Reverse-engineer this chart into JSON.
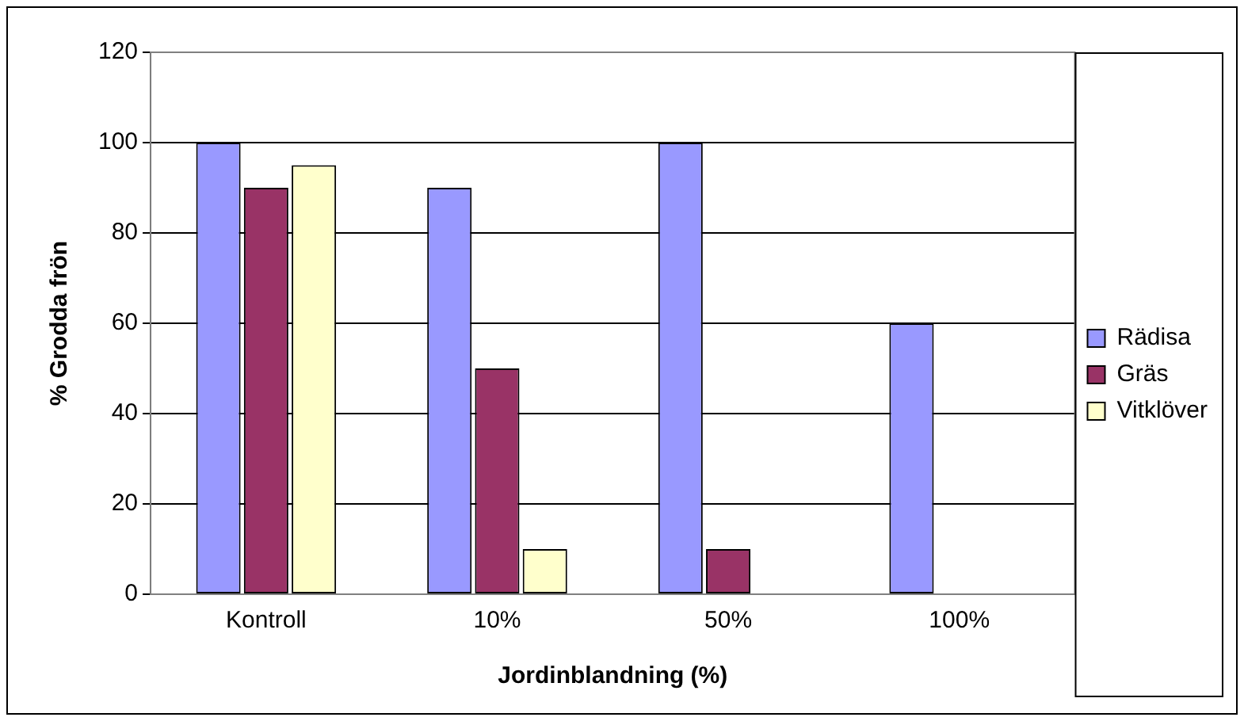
{
  "chart_data": {
    "type": "bar",
    "xlabel": "Jordinblandning (%)",
    "ylabel": "% Grodda frön",
    "categories": [
      "Kontroll",
      "10%",
      "50%",
      "100%"
    ],
    "series": [
      {
        "name": "Rädisa",
        "color": "#9999ff",
        "values": [
          100,
          90,
          100,
          60
        ]
      },
      {
        "name": "Gräs",
        "color": "#993366",
        "values": [
          90,
          50,
          10,
          0
        ]
      },
      {
        "name": "Vitklöver",
        "color": "#ffffcc",
        "values": [
          95,
          10,
          0,
          0
        ]
      }
    ],
    "ylim": [
      0,
      120
    ],
    "yticks": [
      0,
      20,
      40,
      60,
      80,
      100,
      120
    ],
    "grid": "y",
    "legend": "right"
  }
}
